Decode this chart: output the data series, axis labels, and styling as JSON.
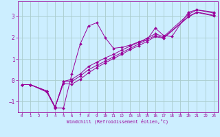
{
  "title": "",
  "xlabel": "Windchill (Refroidissement éolien,°C)",
  "ylabel": "",
  "bg_color": "#cceeff",
  "line_color": "#990099",
  "grid_color": "#aacccc",
  "xlim": [
    -0.5,
    23.5
  ],
  "ylim": [
    -1.5,
    3.7
  ],
  "xticks": [
    0,
    1,
    2,
    3,
    4,
    5,
    6,
    7,
    8,
    9,
    10,
    11,
    12,
    13,
    14,
    15,
    16,
    17,
    18,
    19,
    20,
    21,
    22,
    23
  ],
  "yticks": [
    -1,
    0,
    1,
    2,
    3
  ],
  "lines": [
    {
      "x": [
        0,
        1,
        3,
        4,
        5,
        6,
        7,
        8,
        9,
        10,
        11,
        12,
        13,
        14,
        15,
        16,
        17,
        18,
        20,
        21,
        23
      ],
      "y": [
        -0.2,
        -0.2,
        -0.55,
        -1.3,
        -1.3,
        0.3,
        1.7,
        2.55,
        2.7,
        2.0,
        1.5,
        1.55,
        1.65,
        1.8,
        1.9,
        2.45,
        2.1,
        2.05,
        3.2,
        3.3,
        3.2
      ]
    },
    {
      "x": [
        0,
        1,
        3,
        4,
        5,
        6,
        7,
        8,
        9,
        10,
        11,
        12,
        13,
        14,
        15,
        16,
        17,
        20,
        21,
        23
      ],
      "y": [
        -0.2,
        -0.2,
        -0.5,
        -1.25,
        -0.05,
        0.05,
        0.3,
        0.65,
        0.85,
        1.05,
        1.22,
        1.42,
        1.6,
        1.78,
        1.97,
        2.18,
        2.05,
        3.1,
        3.3,
        3.15
      ]
    },
    {
      "x": [
        0,
        1,
        3,
        4,
        5,
        6,
        7,
        8,
        9,
        10,
        11,
        12,
        13,
        14,
        15,
        16,
        17,
        20,
        21,
        23
      ],
      "y": [
        -0.2,
        -0.2,
        -0.5,
        -1.25,
        -0.05,
        -0.05,
        0.2,
        0.5,
        0.7,
        0.9,
        1.1,
        1.3,
        1.5,
        1.7,
        1.9,
        2.1,
        2.0,
        3.0,
        3.2,
        3.05
      ]
    },
    {
      "x": [
        0,
        1,
        3,
        4,
        5,
        6,
        7,
        8,
        9,
        10,
        11,
        12,
        13,
        14,
        15,
        16,
        17,
        20,
        21,
        23
      ],
      "y": [
        -0.2,
        -0.2,
        -0.5,
        -1.25,
        -0.15,
        -0.18,
        0.05,
        0.35,
        0.6,
        0.82,
        1.02,
        1.22,
        1.44,
        1.62,
        1.82,
        2.05,
        1.97,
        2.98,
        3.18,
        3.02
      ]
    }
  ]
}
